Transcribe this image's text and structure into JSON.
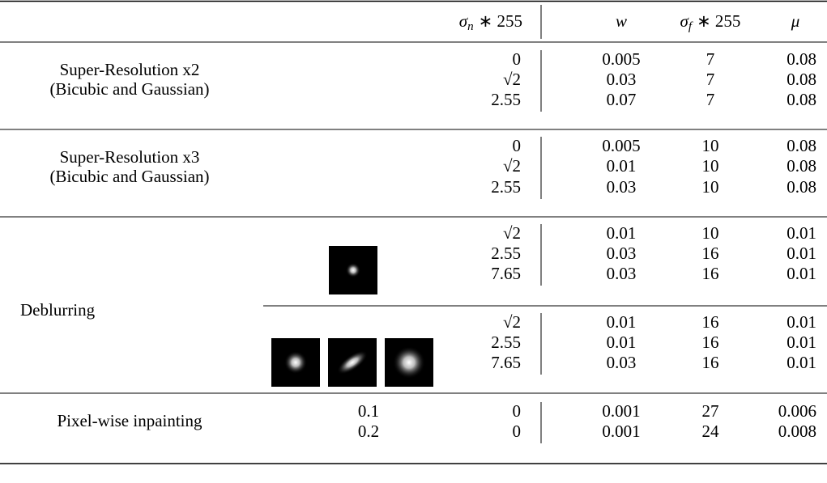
{
  "header": {
    "columns": [
      {
        "symbol": "σ",
        "subscript": "n",
        "rest": "∗ 255"
      },
      {
        "symbol": "w"
      },
      {
        "symbol": "σ",
        "subscript": "f",
        "rest": "∗ 255"
      },
      {
        "symbol": "μ"
      }
    ]
  },
  "sections": [
    {
      "label": [
        "Super-Resolution x2",
        "(Bicubic and Gaussian)"
      ],
      "groups": [
        {
          "rows": [
            {
              "sigma_n": 0,
              "w": 0.005,
              "sigma_f": 7,
              "mu": 0.08
            },
            {
              "sigma_n": "√2",
              "w": 0.03,
              "sigma_f": 7,
              "mu": 0.08
            },
            {
              "sigma_n": 2.55,
              "w": 0.07,
              "sigma_f": 7,
              "mu": 0.08
            }
          ]
        }
      ]
    },
    {
      "label": [
        "Super-Resolution x3",
        "(Bicubic and Gaussian)"
      ],
      "groups": [
        {
          "rows": [
            {
              "sigma_n": 0,
              "w": 0.005,
              "sigma_f": 10,
              "mu": 0.08
            },
            {
              "sigma_n": "√2",
              "w": 0.01,
              "sigma_f": 10,
              "mu": 0.08
            },
            {
              "sigma_n": 2.55,
              "w": 0.03,
              "sigma_f": 10,
              "mu": 0.08
            }
          ]
        }
      ]
    },
    {
      "label": [
        "Deblurring"
      ],
      "groups": [
        {
          "rows": [
            {
              "sigma_n": "√2",
              "w": 0.01,
              "sigma_f": 10,
              "mu": 0.01
            },
            {
              "sigma_n": 2.55,
              "w": 0.03,
              "sigma_f": 16,
              "mu": 0.01
            },
            {
              "sigma_n": 7.65,
              "w": 0.03,
              "sigma_f": 16,
              "mu": 0.01
            }
          ]
        },
        {
          "rows": [
            {
              "sigma_n": "√2",
              "w": 0.01,
              "sigma_f": 16,
              "mu": 0.01
            },
            {
              "sigma_n": 2.55,
              "w": 0.01,
              "sigma_f": 16,
              "mu": 0.01
            },
            {
              "sigma_n": 7.65,
              "w": 0.03,
              "sigma_f": 16,
              "mu": 0.01
            }
          ]
        }
      ]
    },
    {
      "label": [
        "Pixel-wise inpainting"
      ],
      "groups": [
        {
          "rows": [
            {
              "ratio": 0.1,
              "sigma_n": 0,
              "w": 0.001,
              "sigma_f": 27,
              "mu": 0.006
            },
            {
              "ratio": 0.2,
              "sigma_n": 0,
              "w": 0.001,
              "sigma_f": 24,
              "mu": 0.008
            }
          ]
        }
      ]
    }
  ]
}
